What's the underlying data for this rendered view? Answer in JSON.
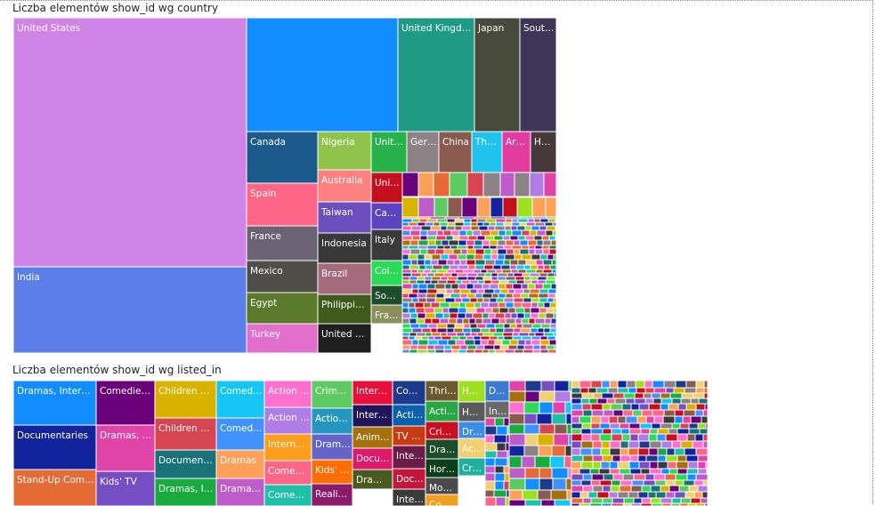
{
  "chart_data": [
    {
      "type": "treemap",
      "title": "Liczba elementów show_id wg country",
      "tiles": [
        {
          "label": "United States",
          "value": 2818,
          "color": "#d084e8"
        },
        {
          "label": "India",
          "value": 972,
          "color": "#5b7ee8"
        },
        {
          "label": "",
          "value": 1200,
          "color": "#118dff"
        },
        {
          "label": "United Kingdom",
          "value": 419,
          "color": "#1f9a85"
        },
        {
          "label": "Japan",
          "value": 245,
          "color": "#474a3a"
        },
        {
          "label": "Sout…",
          "value": 199,
          "color": "#3f3556"
        },
        {
          "label": "Canada",
          "value": 181,
          "color": "#1d5a8c"
        },
        {
          "label": "Spain",
          "value": 145,
          "color": "#fe6587"
        },
        {
          "label": "France",
          "value": 124,
          "color": "#6b6274"
        },
        {
          "label": "Mexico",
          "value": 110,
          "color": "#4f4e49"
        },
        {
          "label": "Egypt",
          "value": 106,
          "color": "#5b7a2c"
        },
        {
          "label": "Turkey",
          "value": 105,
          "color": "#e26fcc"
        },
        {
          "label": "Nigeria",
          "value": 95,
          "color": "#8fc34b"
        },
        {
          "label": "Australia",
          "value": 87,
          "color": "#ff8080"
        },
        {
          "label": "Taiwan",
          "value": 81,
          "color": "#6b4fbe"
        },
        {
          "label": "Indonesia",
          "value": 79,
          "color": "#383838"
        },
        {
          "label": "Brazil",
          "value": 77,
          "color": "#a56a7c"
        },
        {
          "label": "Philippines",
          "value": 75,
          "color": "#3f5b1b"
        },
        {
          "label": "United Ki…",
          "value": 65,
          "color": "#1f1f1f"
        },
        {
          "label": "Unit…",
          "value": 52,
          "color": "#27b24a"
        },
        {
          "label": "Ger…",
          "value": 48,
          "color": "#8c8285"
        },
        {
          "label": "China",
          "value": 47,
          "color": "#8a5a4f"
        },
        {
          "label": "Tha…",
          "value": 45,
          "color": "#1fc3ee"
        },
        {
          "label": "Ar…",
          "value": 40,
          "color": "#e23ca3"
        },
        {
          "label": "H…",
          "value": 38,
          "color": "#47393b"
        },
        {
          "label": "Unit…",
          "value": 32,
          "color": "#c50f1f"
        },
        {
          "label": "Can…",
          "value": 30,
          "color": "#5a44c0"
        },
        {
          "label": "Italy",
          "value": 29,
          "color": "#3a3a3a"
        },
        {
          "label": "Col…",
          "value": 28,
          "color": "#2bdb58"
        },
        {
          "label": "Sou…",
          "value": 26,
          "color": "#1d4d2a"
        },
        {
          "label": "Fra…",
          "value": 22,
          "color": "#8a8f5c"
        }
      ]
    },
    {
      "type": "treemap",
      "title": "Liczba elementów show_id wg listed_in",
      "tiles": [
        {
          "label": "Dramas, Interna…",
          "value": 362,
          "color": "#118dff"
        },
        {
          "label": "Documentaries",
          "value": 359,
          "color": "#12239e"
        },
        {
          "label": "Stand-Up Come…",
          "value": 334,
          "color": "#e66c37"
        },
        {
          "label": "Comedies,…",
          "value": 299,
          "color": "#6b007b"
        },
        {
          "label": "Dramas, In…",
          "value": 253,
          "color": "#e044a7"
        },
        {
          "label": "Kids' TV",
          "value": 220,
          "color": "#744ec2"
        },
        {
          "label": "Children &…",
          "value": 202,
          "color": "#d9b300"
        },
        {
          "label": "Children &…",
          "value": 177,
          "color": "#d64550"
        },
        {
          "label": "Document…",
          "value": 175,
          "color": "#197278"
        },
        {
          "label": "Dramas, Int…",
          "value": 172,
          "color": "#1aab40"
        },
        {
          "label": "Comedi…",
          "value": 161,
          "color": "#15c6f4"
        },
        {
          "label": "Comedi…",
          "value": 152,
          "color": "#4092ff"
        },
        {
          "label": "Dramas",
          "value": 138,
          "color": "#ffa058"
        },
        {
          "label": "Dramas…",
          "value": 134,
          "color": "#be5dc9"
        },
        {
          "label": "Action …",
          "value": 128,
          "color": "#ff6fce"
        },
        {
          "label": "Action …",
          "value": 121,
          "color": "#ae7ee6"
        },
        {
          "label": "Internat…",
          "value": 120,
          "color": "#ff9e1b"
        },
        {
          "label": "Comedi…",
          "value": 116,
          "color": "#fe6587"
        },
        {
          "label": "Comedi…",
          "value": 110,
          "color": "#20c0a8"
        },
        {
          "label": "Crime…",
          "value": 106,
          "color": "#5ecb62"
        },
        {
          "label": "Actio…",
          "value": 103,
          "color": "#2596be"
        },
        {
          "label": "Dram…",
          "value": 100,
          "color": "#6464c8"
        },
        {
          "label": "Kids' …",
          "value": 96,
          "color": "#ff6d00"
        },
        {
          "label": "Realit…",
          "value": 92,
          "color": "#8a1a6a"
        },
        {
          "label": "Intern…",
          "value": 90,
          "color": "#e8103a"
        },
        {
          "label": "Intern…",
          "value": 88,
          "color": "#20155a"
        },
        {
          "label": "Anime…",
          "value": 85,
          "color": "#a6700d"
        },
        {
          "label": "Docus…",
          "value": 82,
          "color": "#e0186b"
        },
        {
          "label": "Dram…",
          "value": 80,
          "color": "#4a5a20"
        },
        {
          "label": "Co…",
          "value": 78,
          "color": "#1e3a8c"
        },
        {
          "label": "Acti…",
          "value": 76,
          "color": "#0b5fad"
        },
        {
          "label": "TV …",
          "value": 74,
          "color": "#c83a12"
        },
        {
          "label": "Inte…",
          "value": 72,
          "color": "#6a1b48"
        },
        {
          "label": "Doc…",
          "value": 70,
          "color": "#c4163a"
        },
        {
          "label": "Inte…",
          "value": 68,
          "color": "#3a3a3a"
        },
        {
          "label": "Thril…",
          "value": 66,
          "color": "#6b5a2e"
        },
        {
          "label": "Acti…",
          "value": 64,
          "color": "#27a845"
        },
        {
          "label": "Cri…",
          "value": 62,
          "color": "#c81020"
        },
        {
          "label": "Dra…",
          "value": 60,
          "color": "#1b4d2a"
        },
        {
          "label": "Hor…",
          "value": 58,
          "color": "#0a3d1a"
        },
        {
          "label": "Mov…",
          "value": 56,
          "color": "#4a4a4a"
        },
        {
          "label": "Co…",
          "value": 54,
          "color": "#f0a020"
        },
        {
          "label": "Ho…",
          "value": 52,
          "color": "#9ee020"
        },
        {
          "label": "Ho…",
          "value": 50,
          "color": "#5a5a5a"
        },
        {
          "label": "Dr…",
          "value": 48,
          "color": "#3c8ce8"
        },
        {
          "label": "Ac…",
          "value": 46,
          "color": "#f0d070"
        },
        {
          "label": "Cri…",
          "value": 44,
          "color": "#20b0a0"
        },
        {
          "label": "D…",
          "value": 42,
          "color": "#3a7ad0"
        },
        {
          "label": "In…",
          "value": 40,
          "color": "#6a6a6a"
        }
      ]
    }
  ]
}
